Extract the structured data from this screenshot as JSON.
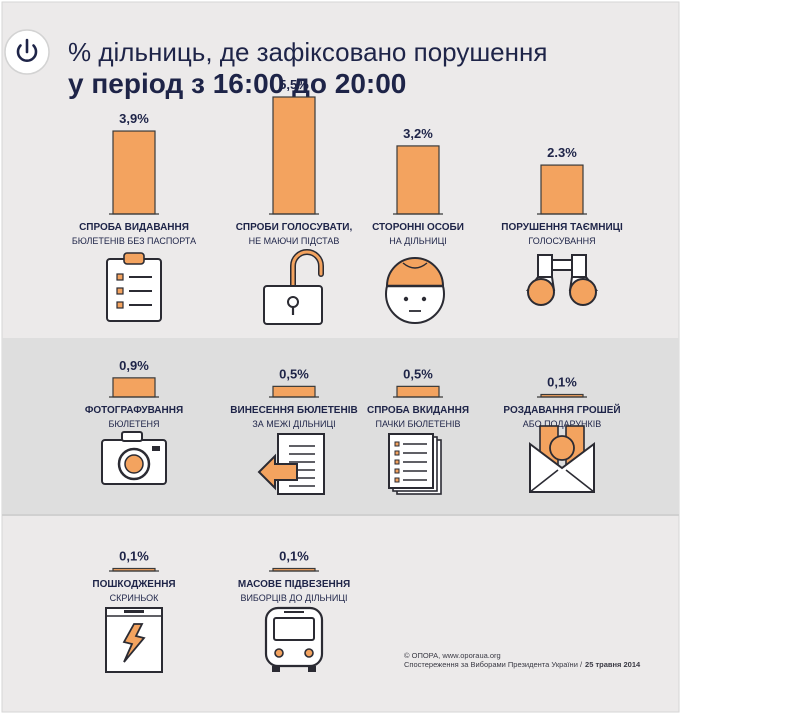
{
  "title": {
    "line1": "% дільниць, де зафіксовано порушення",
    "line2": "у період з 16:00 до 20:00"
  },
  "colors": {
    "background": "#eceaea",
    "band": "#dedede",
    "bar": "#f3a35f",
    "bar_stroke": "#3a3a3a",
    "ink": "#1e2448",
    "icon": "#2b2b33",
    "icon_accent": "#f3a35f"
  },
  "chart_data": {
    "type": "bar",
    "unit": "%",
    "series": [
      {
        "values": [
          3.9,
          5.5,
          3.2,
          2.3,
          0.9,
          0.5,
          0.5,
          0.1,
          0.1,
          0.1
        ],
        "value_labels": [
          "3,9%",
          "5,5%",
          "3,2%",
          "2.3%",
          "0,9%",
          "0,5%",
          "0,5%",
          "0,1%",
          "0,1%",
          "0,1%"
        ]
      }
    ],
    "categories": [
      {
        "title": "СПРОБА ВИДАВАННЯ",
        "subtitle": "БЮЛЕТЕНІВ БЕЗ ПАСПОРТА",
        "icon": "clipboard-icon"
      },
      {
        "title": "СПРОБИ ГОЛОСУВАТИ,",
        "subtitle": "НЕ МАЮЧИ ПІДСТАВ",
        "icon": "open-padlock-icon"
      },
      {
        "title": "СТОРОННІ ОСОБИ",
        "subtitle": "НА ДІЛЬНИЦІ",
        "icon": "face-with-cap-icon"
      },
      {
        "title": "ПОРУШЕННЯ ТАЄМНИЦІ",
        "subtitle": "ГОЛОСУВАННЯ",
        "icon": "binoculars-icon"
      },
      {
        "title": "ФОТОГРАФУВАННЯ",
        "subtitle": "БЮЛЕТЕНЯ",
        "icon": "camera-icon"
      },
      {
        "title": "ВИНЕСЕННЯ БЮЛЕТЕНІВ",
        "subtitle": "ЗА МЕЖІ ДІЛЬНИЦІ",
        "icon": "document-with-arrow-icon"
      },
      {
        "title": "СПРОБА ВКИДАННЯ",
        "subtitle": "ПАЧКИ БЮЛЕТЕНІВ",
        "icon": "stack-of-ballots-icon"
      },
      {
        "title": "РОЗДАВАННЯ ГРОШЕЙ",
        "subtitle": "АБО ПОДАРУНКІВ",
        "icon": "envelope-with-money-icon"
      },
      {
        "title": "ПОШКОДЖЕННЯ",
        "subtitle": "СКРИНЬОК",
        "icon": "damaged-ballot-box-icon"
      },
      {
        "title": "МАСОВЕ ПІДВЕЗЕННЯ",
        "subtitle": "ВИБОРЦІВ ДО ДІЛЬНИЦІ",
        "icon": "bus-icon"
      }
    ]
  },
  "footer": {
    "line1": "© ОПОРА, www.oporaua.org",
    "line2": "Спостереження за Виборами Президента України /",
    "date": "25 травня 2014"
  }
}
